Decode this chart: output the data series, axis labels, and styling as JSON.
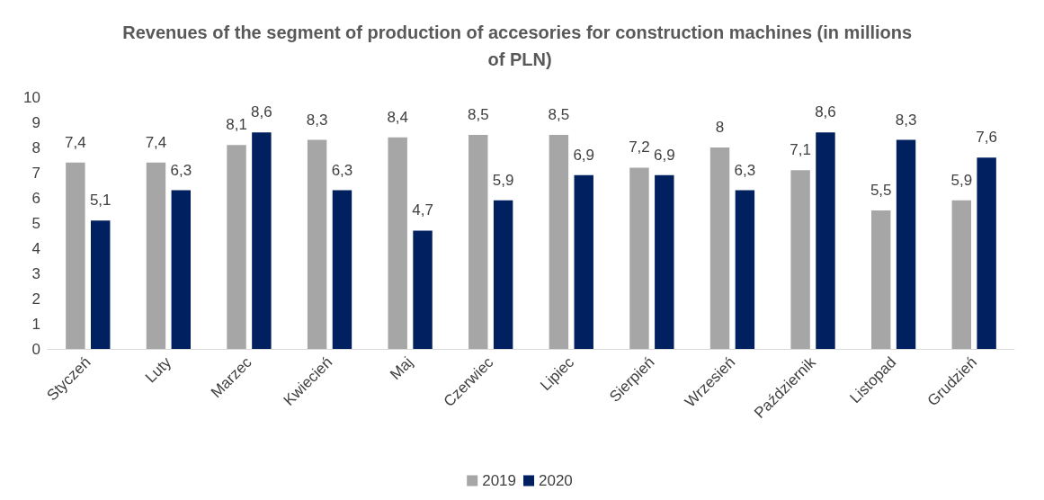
{
  "chart_data": {
    "type": "bar",
    "title": "Revenues of the segment of production of accesories for construction machines (in millions of PLN)",
    "categories": [
      "Styczeń",
      "Luty",
      "Marzec",
      "Kwiecień",
      "Maj",
      "Czerwiec",
      "Lipiec",
      "Sierpień",
      "Wrzesień",
      "Październik",
      "Listopad",
      "Grudzień"
    ],
    "series": [
      {
        "name": "2019",
        "color": "#a6a6a6",
        "values": [
          7.4,
          7.4,
          8.1,
          8.3,
          8.4,
          8.5,
          8.5,
          7.2,
          8,
          7.1,
          5.5,
          5.9
        ],
        "value_labels": [
          "7,4",
          "7,4",
          "8,1",
          "8,3",
          "8,4",
          "8,5",
          "8,5",
          "7,2",
          "8",
          "7,1",
          "5,5",
          "5,9"
        ]
      },
      {
        "name": "2020",
        "color": "#002060",
        "values": [
          5.1,
          6.3,
          8.6,
          6.3,
          4.7,
          5.9,
          6.9,
          6.9,
          6.3,
          8.6,
          8.3,
          7.6
        ],
        "value_labels": [
          "5,1",
          "6,3",
          "8,6",
          "6,3",
          "4,7",
          "5,9",
          "6,9",
          "6,9",
          "6,3",
          "8,6",
          "8,3",
          "7,6"
        ]
      }
    ],
    "ylim": [
      0,
      10
    ],
    "yticks": [
      0,
      1,
      2,
      3,
      4,
      5,
      6,
      7,
      8,
      9,
      10
    ],
    "grid": false,
    "legend": "bottom"
  }
}
